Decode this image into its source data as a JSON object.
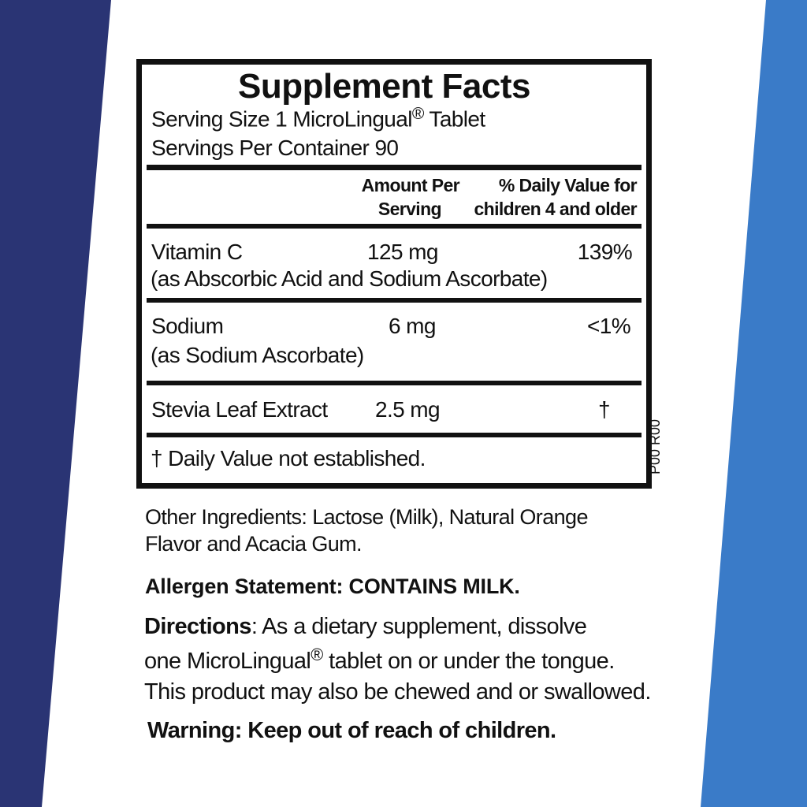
{
  "colors": {
    "left_band": "#2a3474",
    "right_band": "#3a7bc8"
  },
  "facts": {
    "title": "Supplement Facts",
    "serving_size": "Serving Size 1 MicroLingual",
    "serving_size_mark": "®",
    "serving_size_unit": " Tablet",
    "servings_per_container": "Servings Per Container 90",
    "col_amount_1": "Amount Per",
    "col_amount_2": "Serving",
    "col_dv_1": "% Daily Value for",
    "col_dv_2": "children 4 and older",
    "rows": [
      {
        "name": "Vitamin C",
        "sub": "(as Abscorbic Acid and Sodium Ascorbate)",
        "amount": "125 mg",
        "dv": "139%"
      },
      {
        "name": "Sodium",
        "sub": "(as Sodium Ascorbate)",
        "amount": "6 mg",
        "dv": "<1%"
      },
      {
        "name": "Stevia Leaf Extract",
        "amount": "2.5 mg",
        "dv": "†"
      }
    ],
    "footnote": "† Daily Value not established.",
    "code": "P00 R00"
  },
  "other_ingredients_1": "Other Ingredients: Lactose (Milk), Natural Orange",
  "other_ingredients_2": "Flavor and Acacia Gum.",
  "allergen": "Allergen Statement: CONTAINS MILK.",
  "directions_label": "Directions",
  "directions_1": ": As a dietary supplement,  dissolve",
  "directions_2a": "one MicroLingual",
  "directions_2_mark": "®",
  "directions_2b": " tablet on or under the tongue.",
  "directions_3": "This product may also be chewed and or swallowed.",
  "warning_label": "Warning",
  "warning_text": ": Keep out of reach of children."
}
